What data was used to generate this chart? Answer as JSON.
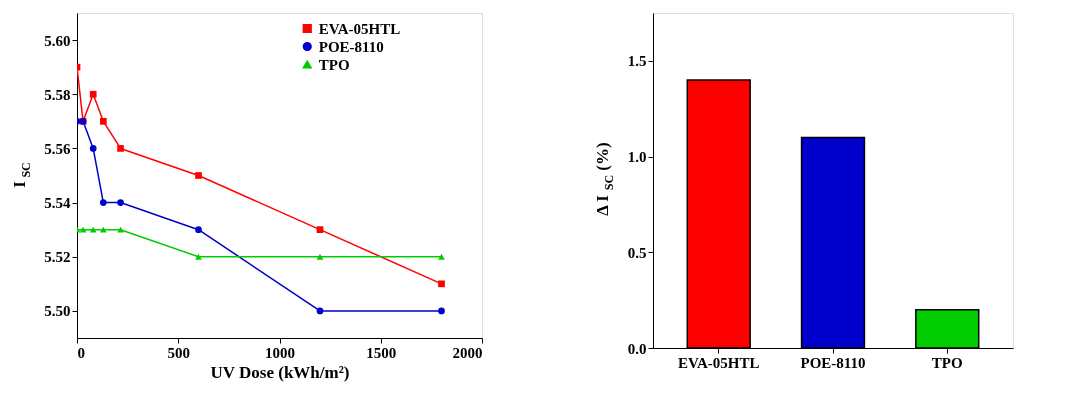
{
  "chart_data": [
    {
      "type": "line",
      "xlabel": "UV Dose (kWh/m²)",
      "ylabel": "I$_{SC}$",
      "x": [
        0,
        30,
        80,
        130,
        215,
        600,
        1200,
        1800
      ],
      "series": [
        {
          "name": "EVA-05HTL",
          "color": "#ff0000",
          "marker": "square",
          "values": [
            5.59,
            5.57,
            5.58,
            5.57,
            5.56,
            5.55,
            5.53,
            5.51
          ]
        },
        {
          "name": "POE-8110",
          "color": "#0000cc",
          "marker": "circle",
          "values": [
            5.57,
            5.57,
            5.56,
            5.54,
            5.54,
            5.53,
            5.5,
            5.5
          ]
        },
        {
          "name": "TPO",
          "color": "#00cc00",
          "marker": "triangle",
          "values": [
            5.53,
            5.53,
            5.53,
            5.53,
            5.53,
            5.52,
            5.52,
            5.52
          ]
        }
      ],
      "xlim": [
        0,
        2000
      ],
      "xticks": [
        0,
        500,
        1000,
        1500,
        2000
      ],
      "ylim": [
        5.49,
        5.61
      ],
      "yticks": [
        {
          "value": 5.5,
          "label": "5.50"
        },
        5.52,
        5.54,
        5.56,
        5.58,
        {
          "value": 5.6,
          "label": "5.60"
        }
      ],
      "legend": "top right",
      "grid": false
    },
    {
      "type": "bar",
      "ylabel": "Δ I$_{SC}$ (%)",
      "categories": [
        "EVA-05HTL",
        "POE-8110",
        "TPO"
      ],
      "values": [
        1.4,
        1.1,
        0.2
      ],
      "colors": [
        "#ff0000",
        "#0000cc",
        "#00cc00"
      ],
      "ylim": [
        0,
        1.75
      ],
      "yticks": [
        {
          "value": 0,
          "label": "0.0"
        },
        0.5,
        {
          "value": 1,
          "label": "1.0"
        },
        1.5
      ],
      "grid": false
    }
  ]
}
